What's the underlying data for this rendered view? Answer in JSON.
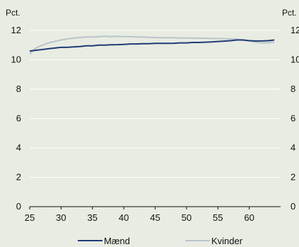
{
  "chart_data": {
    "type": "line",
    "title": "",
    "xlabel": "",
    "ylabel_left": "Pct.",
    "ylabel_right": "Pct.",
    "xlim": [
      25,
      65
    ],
    "ylim": [
      0,
      12
    ],
    "x_ticks": [
      25,
      30,
      35,
      40,
      45,
      50,
      55,
      60
    ],
    "y_ticks": [
      0,
      2,
      4,
      6,
      8,
      10,
      12
    ],
    "grid": "horizontal",
    "legend_position": "bottom",
    "x": [
      25,
      26,
      27,
      28,
      29,
      30,
      31,
      32,
      33,
      34,
      35,
      36,
      37,
      38,
      39,
      40,
      41,
      42,
      43,
      44,
      45,
      46,
      47,
      48,
      49,
      50,
      51,
      52,
      53,
      54,
      55,
      56,
      57,
      58,
      59,
      60,
      61,
      62,
      63,
      64
    ],
    "series": [
      {
        "name": "Mænd",
        "color": "#1f3b73",
        "values": [
          10.6,
          10.65,
          10.7,
          10.75,
          10.8,
          10.85,
          10.85,
          10.88,
          10.9,
          10.95,
          10.95,
          11.0,
          11.0,
          11.02,
          11.03,
          11.05,
          11.08,
          11.08,
          11.1,
          11.1,
          11.12,
          11.12,
          11.12,
          11.13,
          11.15,
          11.15,
          11.18,
          11.18,
          11.2,
          11.22,
          11.25,
          11.27,
          11.3,
          11.35,
          11.35,
          11.3,
          11.28,
          11.28,
          11.3,
          11.35
        ]
      },
      {
        "name": "Kvinder",
        "color": "#b9c4cc",
        "values": [
          10.4,
          10.8,
          11.0,
          11.15,
          11.25,
          11.35,
          11.42,
          11.48,
          11.52,
          11.55,
          11.55,
          11.58,
          11.6,
          11.58,
          11.6,
          11.58,
          11.57,
          11.55,
          11.55,
          11.53,
          11.52,
          11.5,
          11.5,
          11.5,
          11.48,
          11.48,
          11.48,
          11.47,
          11.47,
          11.45,
          11.45,
          11.43,
          11.42,
          11.4,
          11.35,
          11.3,
          11.2,
          11.15,
          11.15,
          11.2
        ]
      }
    ]
  }
}
